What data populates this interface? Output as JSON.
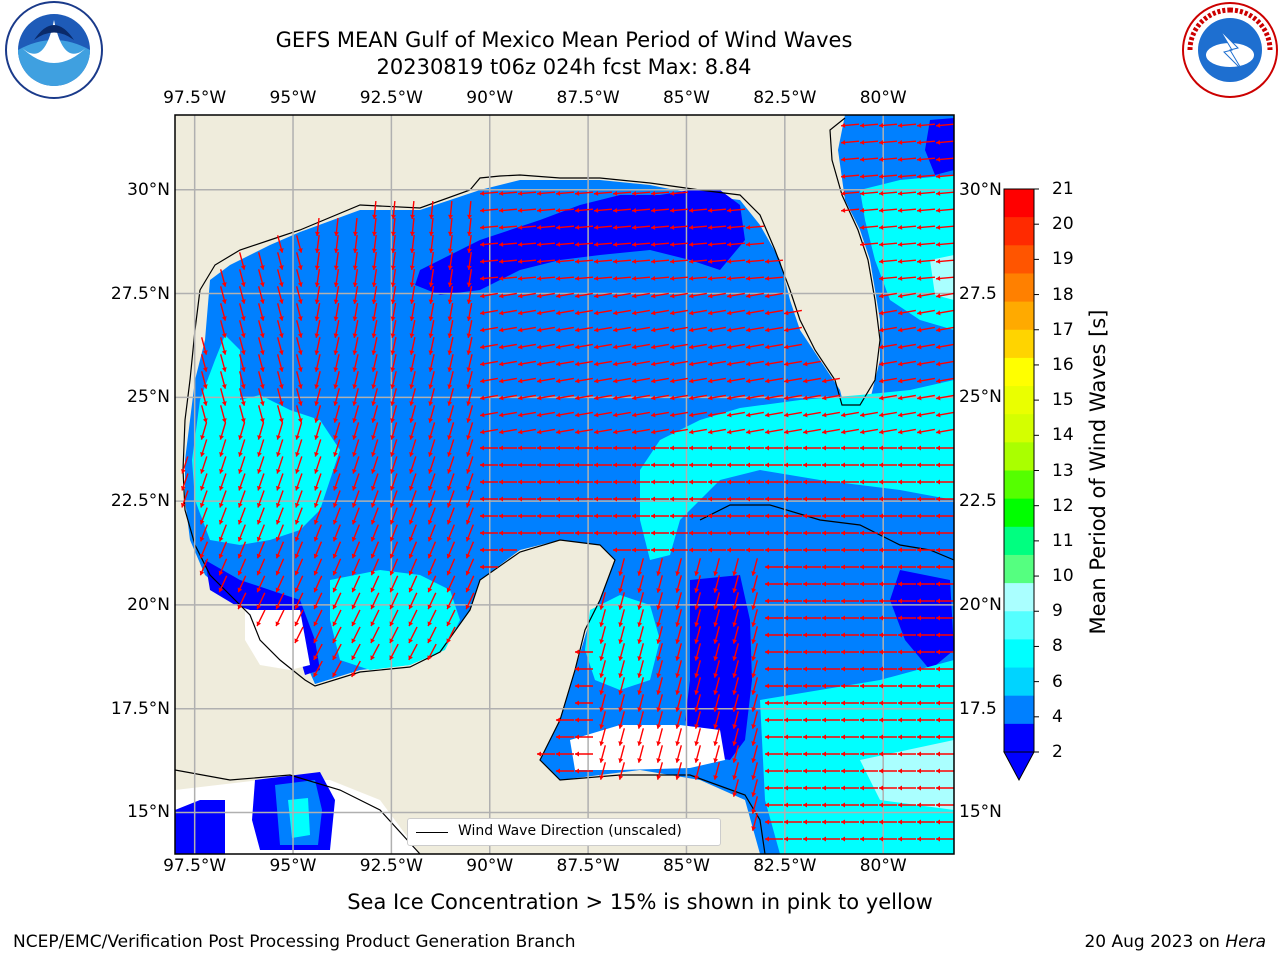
{
  "header": {
    "title_line1": "GEFS MEAN Gulf of Mexico Mean Period of Wind Waves",
    "title_line2": "20230819 t06z 024h fcst   Max: 8.84"
  },
  "logos": {
    "left": "noaa-logo",
    "right": "national-weather-service-logo"
  },
  "map": {
    "lon_labels": [
      "97.5°W",
      "95°W",
      "92.5°W",
      "90°W",
      "87.5°W",
      "85°W",
      "82.5°W",
      "80°W"
    ],
    "lat_labels_left": [
      "30°N",
      "27.5°N",
      "25°N",
      "22.5°N",
      "20°N",
      "17.5°N",
      "15°N"
    ],
    "lat_labels_right": [
      "30°N",
      "27.5",
      "25°N",
      "22.5",
      "20°N",
      "17.5",
      "15°N"
    ],
    "lon_values": [
      -97.5,
      -95,
      -92.5,
      -90,
      -87.5,
      -85,
      -82.5,
      -80
    ],
    "lat_values": [
      30,
      27.5,
      25,
      22.5,
      20,
      17.5,
      15
    ],
    "extent": {
      "lon": [
        -98,
        -78.2
      ],
      "lat": [
        14,
        31.8
      ]
    },
    "colors": {
      "land": "#efecdc",
      "ocean_low": "#0000ff",
      "ocean_mid": "#0080ff",
      "ocean_high": "#00ffff",
      "arrow": "#ff0000",
      "grid": "#b0b0b0"
    },
    "legend_label": "Wind Wave Direction (unscaled)"
  },
  "colorbar": {
    "title": "Mean Period of Wind Waves [s]",
    "labels": [
      "21",
      "20",
      "19",
      "18",
      "17",
      "16",
      "15",
      "14",
      "13",
      "12",
      "11",
      "10",
      "9",
      "8",
      "6",
      "4",
      "2"
    ],
    "colors": [
      "#ff0000",
      "#ff2a00",
      "#ff5500",
      "#ff8000",
      "#ffaa00",
      "#ffd400",
      "#ffff00",
      "#eaff00",
      "#d4ff00",
      "#aaff00",
      "#55ff00",
      "#00ff00",
      "#00ff80",
      "#55ff80",
      "#aaffff",
      "#55ffff",
      "#00ffff",
      "#00d4ff",
      "#0080ff",
      "#0000ff"
    ]
  },
  "footer": {
    "caption": "Sea Ice Concentration > 15% is shown in pink to yellow",
    "credit": "NCEP/EMC/Verification Post Processing Product Generation Branch",
    "date": "20 Aug 2023 on",
    "machine": "Hera"
  }
}
